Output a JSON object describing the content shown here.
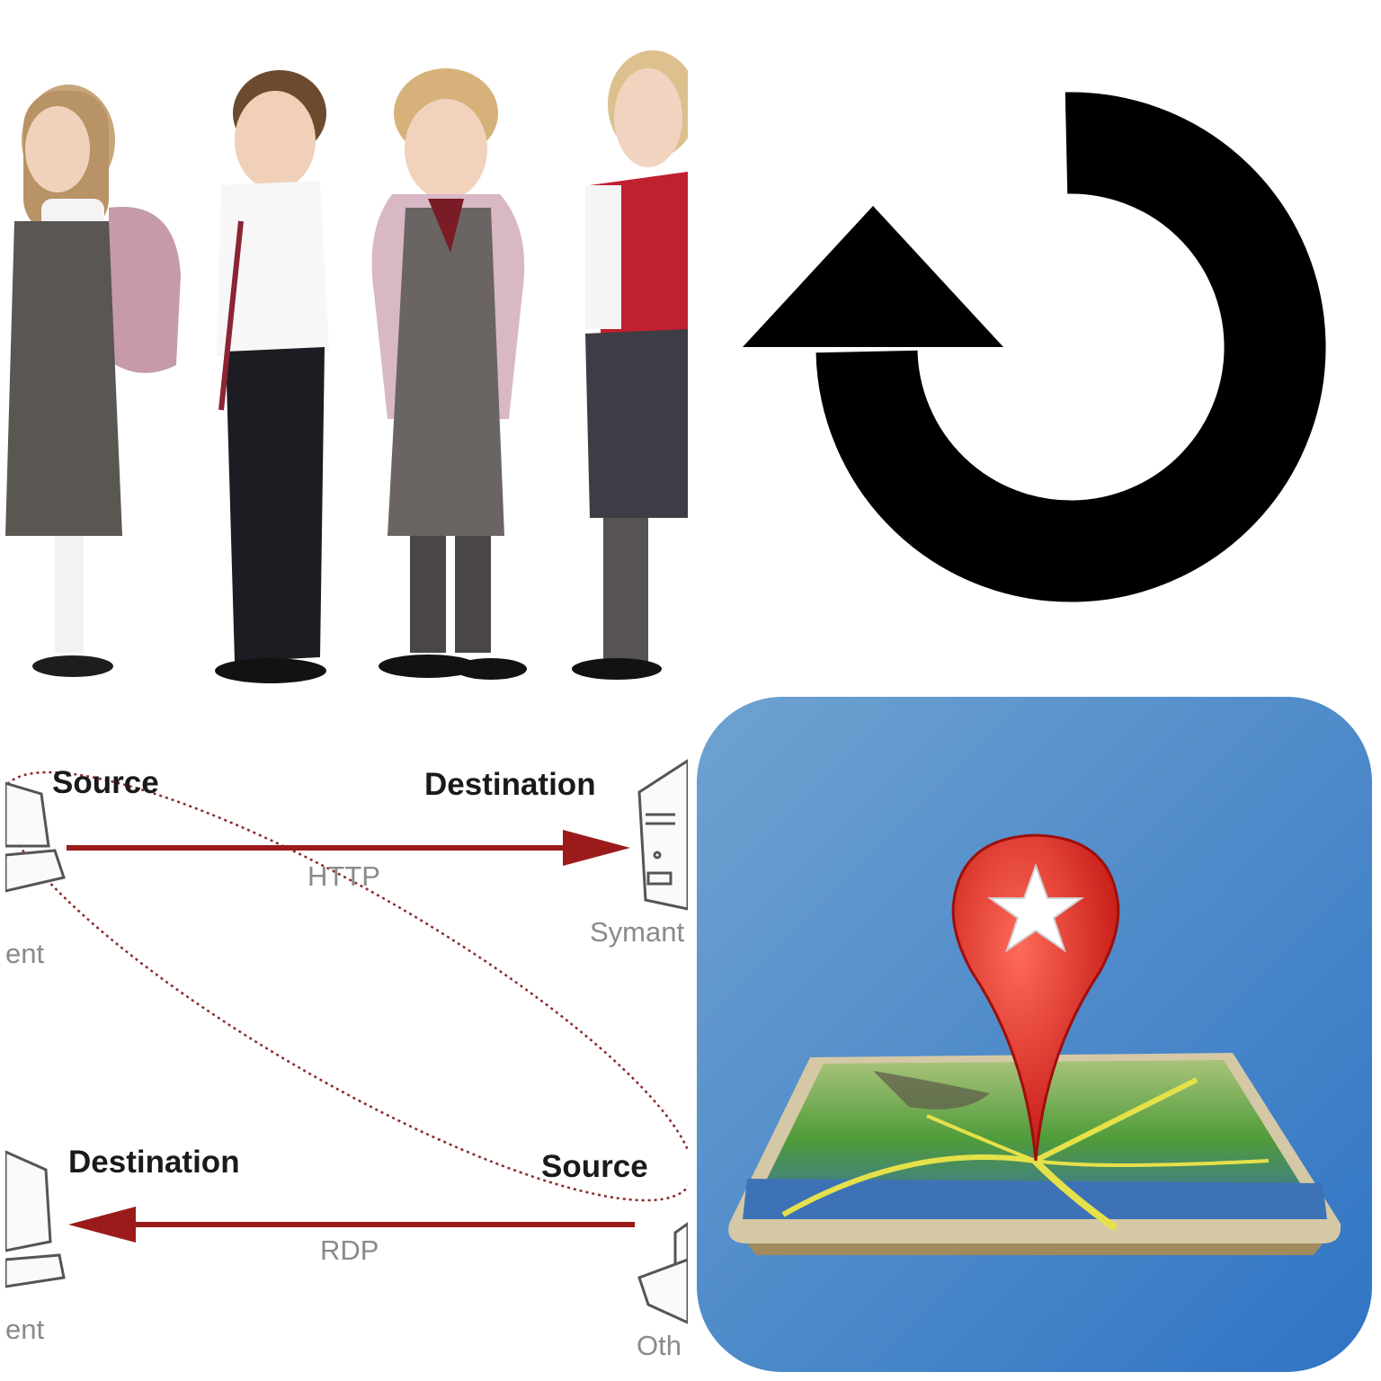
{
  "tiles": {
    "top_left": {
      "icon": "children-in-school-uniform-photo"
    },
    "top_right": {
      "icon": "counterclockwise-refresh-arrow-icon",
      "color": "#000000"
    },
    "bottom_left": {
      "icon": "network-flow-diagram",
      "arrow_color": "#9b1b1b",
      "top_source_label": "Source",
      "top_destination_label": "Destination",
      "top_protocol_label": "HTTP",
      "top_right_caption": "Symant",
      "top_left_caption": "ent",
      "bottom_destination_label": "Destination",
      "bottom_source_label": "Source",
      "bottom_protocol_label": "RDP",
      "bottom_left_caption": "ent",
      "bottom_right_caption": "Oth"
    },
    "bottom_right": {
      "icon": "map-pin-app-icon",
      "background_color": "#4a8ccf",
      "pin_color": "#d9231f"
    }
  }
}
